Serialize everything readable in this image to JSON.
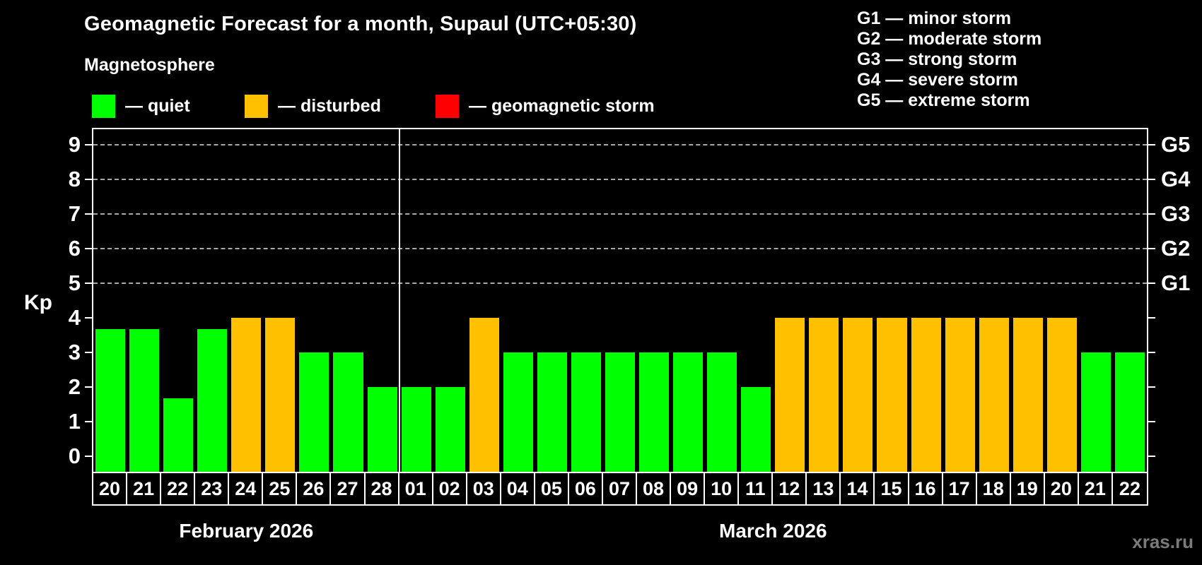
{
  "header": {
    "title": "Geomagnetic Forecast for a month, Supaul (UTC+05:30)",
    "subtitle": "Magnetosphere"
  },
  "colors": {
    "quiet": "#00ff00",
    "disturbed": "#ffc000",
    "storm": "#ff0000",
    "axis": "#ffffff",
    "grid": "#a8a8a8",
    "background": "#000000",
    "watermark_text": "#7b7b7b"
  },
  "legend": {
    "items": [
      {
        "label": "— quiet",
        "status": "quiet"
      },
      {
        "label": "— disturbed",
        "status": "disturbed"
      },
      {
        "label": "— geomagnetic storm",
        "status": "storm"
      }
    ]
  },
  "storm_scale": {
    "lines": [
      "G1 — minor storm",
      "G2 — moderate storm",
      "G3 — strong storm",
      "G4 — severe storm",
      "G5 — extreme storm"
    ]
  },
  "watermark": "xras.ru",
  "chart_data": {
    "type": "bar",
    "title": "Geomagnetic Forecast for a month, Supaul (UTC+05:30)",
    "subtitle": "Magnetosphere",
    "ylabel": "Kp",
    "ylim": [
      -0.45,
      9.45
    ],
    "yticks": [
      0,
      1,
      2,
      3,
      4,
      5,
      6,
      7,
      8,
      9
    ],
    "gridlines_at": [
      5,
      6,
      7,
      8,
      9
    ],
    "grid": "dashed",
    "legend_position": "top",
    "g_levels": [
      {
        "label": "G1",
        "kp": 5
      },
      {
        "label": "G2",
        "kp": 6
      },
      {
        "label": "G3",
        "kp": 7
      },
      {
        "label": "G4",
        "kp": 8
      },
      {
        "label": "G5",
        "kp": 9
      }
    ],
    "months": [
      {
        "name": "February 2026",
        "days": [
          {
            "date": "20",
            "kp": 3.67,
            "status": "quiet"
          },
          {
            "date": "21",
            "kp": 3.67,
            "status": "quiet"
          },
          {
            "date": "22",
            "kp": 1.67,
            "status": "quiet"
          },
          {
            "date": "23",
            "kp": 3.67,
            "status": "quiet"
          },
          {
            "date": "24",
            "kp": 4,
            "status": "disturbed"
          },
          {
            "date": "25",
            "kp": 4,
            "status": "disturbed"
          },
          {
            "date": "26",
            "kp": 3,
            "status": "quiet"
          },
          {
            "date": "27",
            "kp": 3,
            "status": "quiet"
          },
          {
            "date": "28",
            "kp": 2,
            "status": "quiet"
          }
        ]
      },
      {
        "name": "March 2026",
        "days": [
          {
            "date": "01",
            "kp": 2,
            "status": "quiet"
          },
          {
            "date": "02",
            "kp": 2,
            "status": "quiet"
          },
          {
            "date": "03",
            "kp": 4,
            "status": "disturbed"
          },
          {
            "date": "04",
            "kp": 3,
            "status": "quiet"
          },
          {
            "date": "05",
            "kp": 3,
            "status": "quiet"
          },
          {
            "date": "06",
            "kp": 3,
            "status": "quiet"
          },
          {
            "date": "07",
            "kp": 3,
            "status": "quiet"
          },
          {
            "date": "08",
            "kp": 3,
            "status": "quiet"
          },
          {
            "date": "09",
            "kp": 3,
            "status": "quiet"
          },
          {
            "date": "10",
            "kp": 3,
            "status": "quiet"
          },
          {
            "date": "11",
            "kp": 2,
            "status": "quiet"
          },
          {
            "date": "12",
            "kp": 4,
            "status": "disturbed"
          },
          {
            "date": "13",
            "kp": 4,
            "status": "disturbed"
          },
          {
            "date": "14",
            "kp": 4,
            "status": "disturbed"
          },
          {
            "date": "15",
            "kp": 4,
            "status": "disturbed"
          },
          {
            "date": "16",
            "kp": 4,
            "status": "disturbed"
          },
          {
            "date": "17",
            "kp": 4,
            "status": "disturbed"
          },
          {
            "date": "18",
            "kp": 4,
            "status": "disturbed"
          },
          {
            "date": "19",
            "kp": 4,
            "status": "disturbed"
          },
          {
            "date": "20",
            "kp": 4,
            "status": "disturbed"
          },
          {
            "date": "21",
            "kp": 3,
            "status": "quiet"
          },
          {
            "date": "22",
            "kp": 3,
            "status": "quiet"
          }
        ]
      }
    ]
  }
}
